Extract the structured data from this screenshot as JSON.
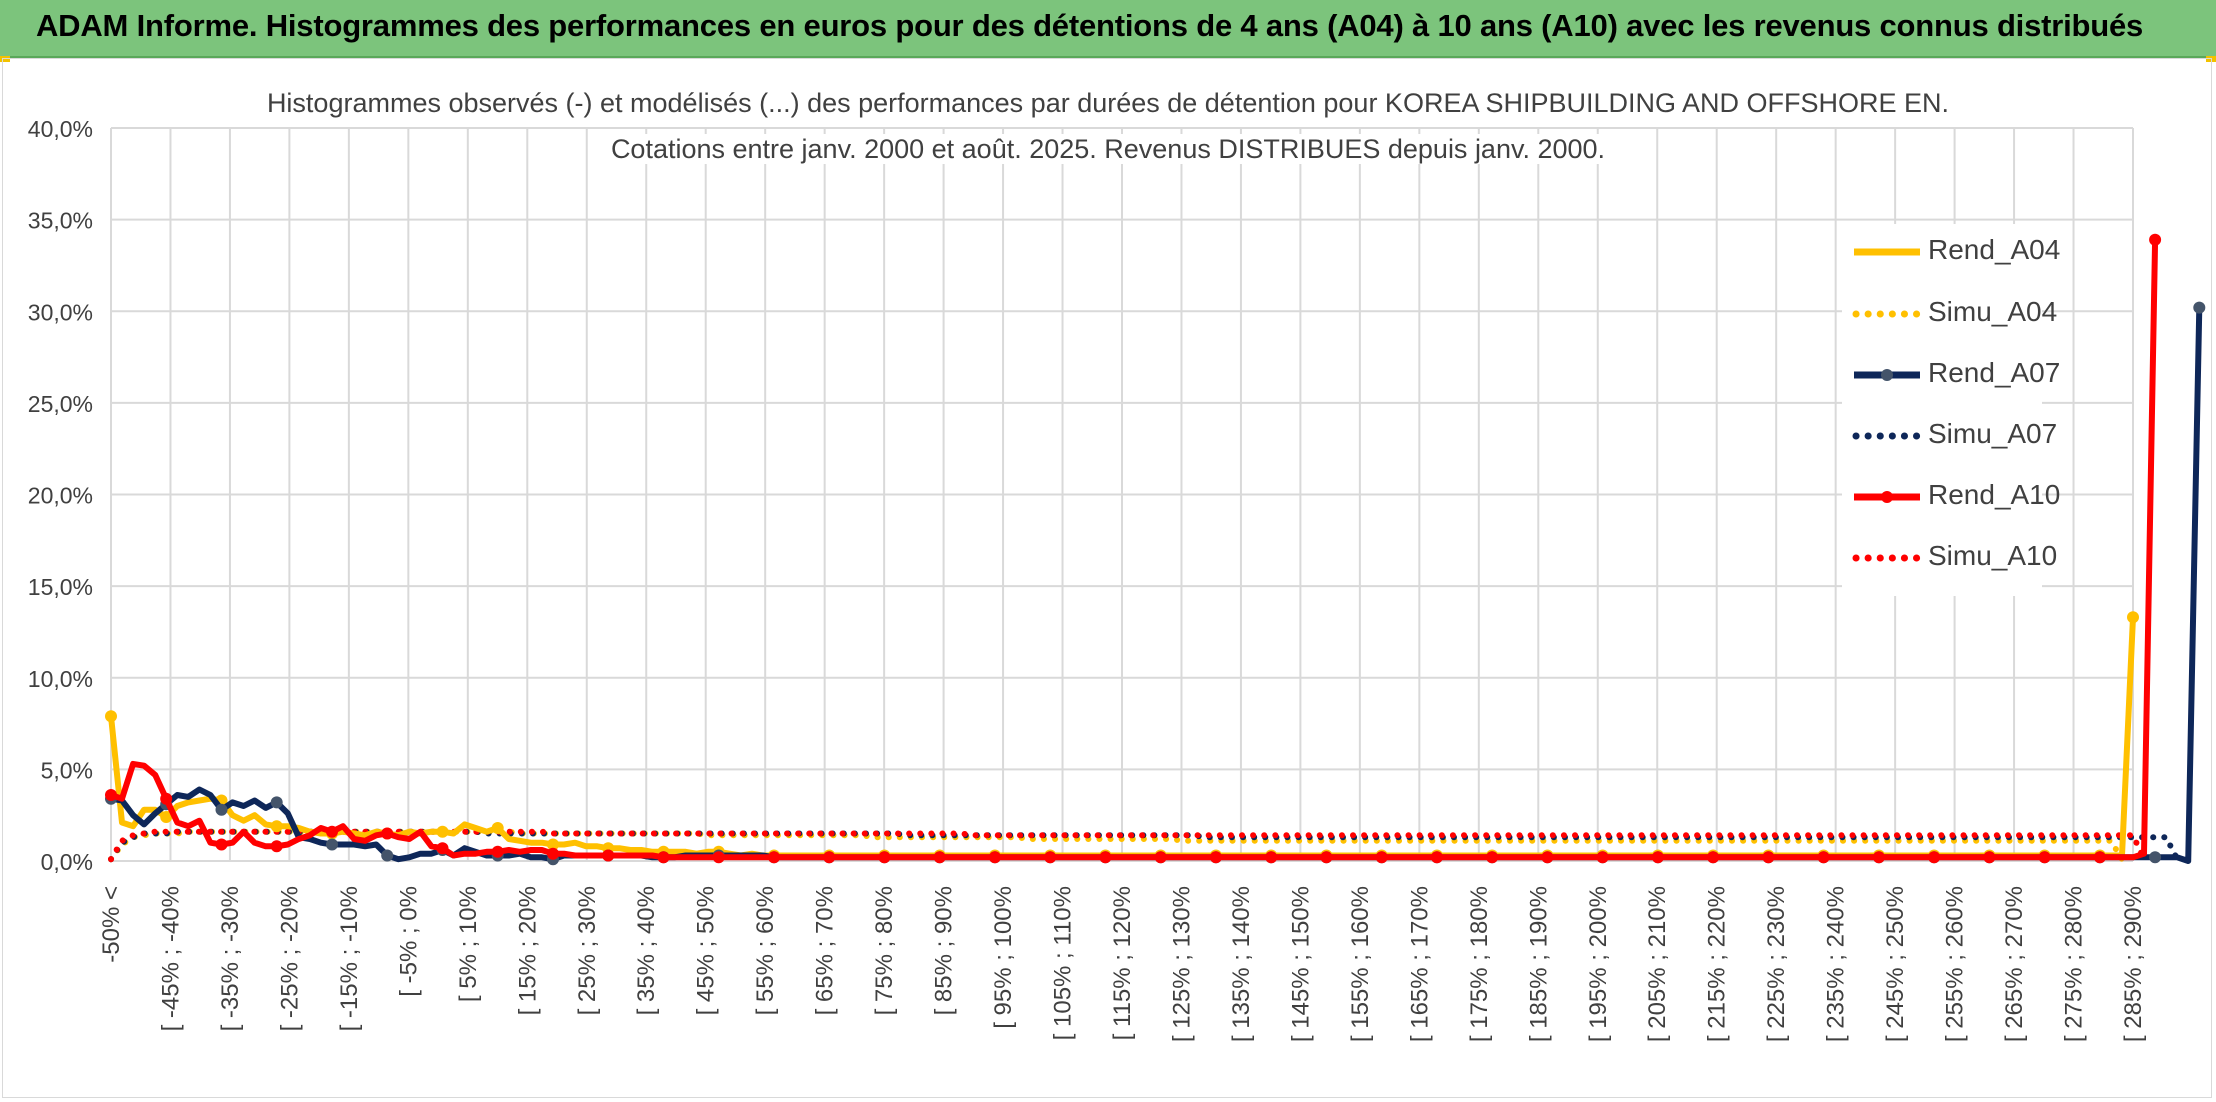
{
  "banner": {
    "title": "ADAM Informe. Histogrammes des performances en euros pour des détentions de 4 ans (A04) à 10 ans (A10) avec les revenus connus distribués"
  },
  "colors": {
    "banner_bg": "#7cc47c",
    "a04": "#ffc000",
    "a07": "#0e2759",
    "a10": "#ff0000",
    "grid": "#d9d9d9",
    "text": "#404040"
  },
  "chart_data": {
    "type": "line",
    "title": "Histogrammes observés (-) et modélisés (...) des performances par durées de détention pour KOREA SHIPBUILDING AND OFFSHORE EN.",
    "subtitle": "Cotations entre janv. 2000 et août. 2025. Revenus DISTRIBUES depuis janv. 2000.",
    "xlabel": "",
    "ylabel": "",
    "ylim": [
      0,
      40
    ],
    "yticks": [
      "0,0%",
      "5,0%",
      "10,0%",
      "15,0%",
      "20,0%",
      "25,0%",
      "30,0%",
      "35,0%",
      "40,0%"
    ],
    "grid": true,
    "legend_position": "right",
    "x_tick_labels": [
      "-50% <",
      "[ -45% ; -40%",
      "[ -35% ; -30%",
      "[ -25% ; -20%",
      "[ -15% ; -10%",
      "[ -5% ; 0%",
      "[ 5% ; 10%",
      "[ 15% ; 20%",
      "[ 25% ; 30%",
      "[ 35% ; 40%",
      "[ 45% ; 50%",
      "[ 55% ; 60%",
      "[ 65% ; 70%",
      "[ 75% ; 80%",
      "[ 85% ; 90%",
      "[ 95% ; 100%",
      "[ 105% ; 110%",
      "[ 115% ; 120%",
      "[ 125% ; 130%",
      "[ 135% ; 140%",
      "[ 145% ; 150%",
      "[ 155% ; 160%",
      "[ 165% ; 170%",
      "[ 175% ; 180%",
      "[ 185% ; 190%",
      "[ 195% ; 200%",
      "[ 205% ; 210%",
      "[ 215% ; 220%",
      "[ 225% ; 230%",
      "[ 235% ; 240%",
      "[ 245% ; 250%",
      "[ 255% ; 260%",
      "[ 265% ; 270%",
      "[ 275% ; 280%",
      "[ 285% ; 290%"
    ],
    "series": [
      {
        "name": "Rend_A04",
        "style": "solid",
        "color": "#ffc000",
        "values": [
          7.9,
          2.1,
          1.9,
          2.8,
          2.8,
          2.4,
          3.0,
          3.2,
          3.3,
          3.4,
          3.3,
          2.5,
          2.2,
          2.5,
          2.0,
          1.9,
          1.9,
          1.8,
          1.6,
          1.5,
          1.5,
          1.6,
          1.5,
          1.4,
          1.6,
          1.5,
          1.4,
          1.6,
          1.5,
          1.6,
          1.6,
          1.5,
          2.0,
          1.8,
          1.6,
          1.8,
          1.2,
          1.1,
          1.0,
          1.0,
          0.9,
          0.9,
          1.0,
          0.8,
          0.8,
          0.7,
          0.7,
          0.6,
          0.6,
          0.5,
          0.5,
          0.5,
          0.5,
          0.4,
          0.5,
          0.5,
          0.4,
          0.3,
          0.4,
          0.3,
          0.3,
          0.3,
          0.3,
          0.3,
          0.3,
          0.3,
          0.3,
          0.3,
          0.3,
          0.3,
          0.3,
          0.3,
          0.3,
          0.3,
          0.3,
          0.3,
          0.3,
          0.3,
          0.3,
          0.3,
          0.3,
          0.3,
          0.3,
          0.3,
          0.3,
          0.3,
          0.3,
          0.3,
          0.3,
          0.3,
          0.3,
          0.3,
          0.3,
          0.3,
          0.3,
          0.3,
          0.3,
          0.3,
          0.3,
          0.3,
          0.3,
          0.3,
          0.3,
          0.3,
          0.3,
          0.3,
          0.3,
          0.3,
          0.3,
          0.3,
          0.3,
          0.3,
          0.3,
          0.3,
          0.3,
          0.3,
          0.3,
          0.3,
          0.3,
          0.3,
          0.3,
          0.3,
          0.3,
          0.3,
          0.3,
          0.3,
          0.3,
          0.3,
          0.3,
          0.3,
          0.3,
          0.3,
          0.3,
          0.3,
          0.3,
          0.3,
          0.3,
          0.3,
          0.3,
          0.3,
          0.3,
          0.3,
          0.3,
          0.3,
          0.3,
          0.3,
          0.3,
          0.3,
          0.3,
          0.3,
          0.3,
          0.3,
          0.3,
          0.3,
          0.3,
          0.3,
          0.3,
          0.3,
          0.3,
          0.3,
          0.3,
          0.3,
          0.3,
          0.3,
          0.3,
          0.3,
          0.3,
          0.3,
          0.3,
          0.3,
          0.3,
          0.3,
          0.3,
          0.3,
          0.3,
          0.3,
          0.3,
          0.3,
          0.3,
          0.3,
          0.3,
          0.3,
          0.3,
          13.3
        ]
      },
      {
        "name": "Simu_A04",
        "style": "dotted",
        "color": "#ffc000",
        "values": [
          0.1,
          0.9,
          1.3,
          1.4,
          1.5,
          1.5,
          1.5,
          1.6,
          1.6,
          1.6,
          1.6,
          1.6,
          1.6,
          1.6,
          1.6,
          1.6,
          1.6,
          1.6,
          1.6,
          1.6,
          1.6,
          1.6,
          1.6,
          1.6,
          1.6,
          1.6,
          1.6,
          1.6,
          1.6,
          1.6,
          1.6,
          1.6,
          1.6,
          1.6,
          1.6,
          1.6,
          1.6,
          1.5,
          1.5,
          1.5,
          1.5,
          1.5,
          1.5,
          1.5,
          1.5,
          1.5,
          1.5,
          1.5,
          1.5,
          1.5,
          1.5,
          1.5,
          1.5,
          1.5,
          1.4,
          1.4,
          1.4,
          1.4,
          1.4,
          1.4,
          1.4,
          1.4,
          1.4,
          1.4,
          1.4,
          1.4,
          1.4,
          1.4,
          1.4,
          1.3,
          1.3,
          1.3,
          1.3,
          1.3,
          1.3,
          1.3,
          1.3,
          1.3,
          1.3,
          1.3,
          1.3,
          1.3,
          1.3,
          1.2,
          1.2,
          1.2,
          1.2,
          1.2,
          1.2,
          1.2,
          1.2,
          1.2,
          1.2,
          1.2,
          1.2,
          1.2,
          1.2,
          1.1,
          1.1,
          1.1,
          1.1,
          1.1,
          1.1,
          1.1,
          1.1,
          1.1,
          1.1,
          1.1,
          1.1,
          1.1,
          1.1,
          1.1,
          1.1,
          1.1,
          1.1,
          1.1,
          1.1,
          1.1,
          1.1,
          1.1,
          1.1,
          1.1,
          1.1,
          1.1,
          1.1,
          1.1,
          1.1,
          1.1,
          1.1,
          1.1,
          1.1,
          1.1,
          1.1,
          1.1,
          1.1,
          1.1,
          1.1,
          1.1,
          1.1,
          1.1,
          1.1,
          1.1,
          1.1,
          1.1,
          1.1,
          1.1,
          1.1,
          1.1,
          1.1,
          1.1,
          1.1,
          1.1,
          1.1,
          1.1,
          1.1,
          1.1,
          1.1,
          1.1,
          1.1,
          1.1,
          1.1,
          1.1,
          1.1,
          1.1,
          1.1,
          1.1,
          1.1,
          1.1,
          1.1,
          1.1,
          1.1,
          1.1,
          1.1,
          1.1,
          1.1,
          1.1,
          1.1,
          1.1,
          1.1,
          1.1,
          1.1,
          1.1,
          0.1
        ]
      },
      {
        "name": "Rend_A07",
        "style": "solid",
        "color": "#0e2759",
        "values": [
          3.4,
          3.3,
          2.5,
          2.0,
          2.6,
          3.1,
          3.6,
          3.5,
          3.9,
          3.6,
          2.8,
          3.2,
          3.0,
          3.3,
          2.9,
          3.2,
          2.6,
          1.3,
          1.2,
          1.0,
          0.9,
          0.9,
          0.9,
          0.8,
          0.9,
          0.3,
          0.1,
          0.2,
          0.4,
          0.4,
          0.6,
          0.3,
          0.7,
          0.5,
          0.3,
          0.3,
          0.3,
          0.4,
          0.2,
          0.2,
          0.1,
          0.3,
          0.3,
          0.3,
          0.3,
          0.3,
          0.3,
          0.3,
          0.3,
          0.2,
          0.2,
          0.2,
          0.3,
          0.3,
          0.3,
          0.3,
          0.3,
          0.3,
          0.3,
          0.3,
          0.2,
          0.2,
          0.2,
          0.2,
          0.2,
          0.2,
          0.2,
          0.2,
          0.2,
          0.2,
          0.2,
          0.2,
          0.2,
          0.2,
          0.2,
          0.2,
          0.2,
          0.2,
          0.2,
          0.2,
          0.2,
          0.2,
          0.2,
          0.2,
          0.2,
          0.2,
          0.2,
          0.2,
          0.2,
          0.2,
          0.2,
          0.2,
          0.2,
          0.2,
          0.2,
          0.2,
          0.2,
          0.2,
          0.2,
          0.2,
          0.2,
          0.2,
          0.2,
          0.2,
          0.2,
          0.2,
          0.2,
          0.2,
          0.2,
          0.2,
          0.2,
          0.2,
          0.2,
          0.2,
          0.2,
          0.2,
          0.2,
          0.2,
          0.2,
          0.2,
          0.2,
          0.2,
          0.2,
          0.2,
          0.2,
          0.2,
          0.2,
          0.2,
          0.2,
          0.2,
          0.2,
          0.2,
          0.2,
          0.2,
          0.2,
          0.2,
          0.2,
          0.2,
          0.2,
          0.2,
          0.2,
          0.2,
          0.2,
          0.2,
          0.2,
          0.2,
          0.2,
          0.2,
          0.2,
          0.2,
          0.2,
          0.2,
          0.2,
          0.2,
          0.2,
          0.2,
          0.2,
          0.2,
          0.2,
          0.2,
          0.2,
          0.2,
          0.2,
          0.2,
          0.2,
          0.2,
          0.2,
          0.2,
          0.2,
          0.2,
          0.2,
          0.2,
          0.2,
          0.2,
          0.2,
          0.2,
          0.2,
          0.2,
          0.2,
          0.2,
          0.2,
          0.2,
          0.2,
          0.2,
          0.2,
          0.2,
          0.2,
          0.2,
          0.0,
          30.2
        ]
      },
      {
        "name": "Simu_A07",
        "style": "dotted",
        "color": "#0e2759",
        "values": [
          0.1,
          1.0,
          1.3,
          1.5,
          1.5,
          1.5,
          1.6,
          1.6,
          1.6,
          1.6,
          1.6,
          1.6,
          1.6,
          1.6,
          1.6,
          1.6,
          1.6,
          1.6,
          1.6,
          1.6,
          1.6,
          1.6,
          1.6,
          1.6,
          1.6,
          1.6,
          1.6,
          1.6,
          1.6,
          1.6,
          1.6,
          1.6,
          1.6,
          1.6,
          1.5,
          1.5,
          1.5,
          1.5,
          1.5,
          1.5,
          1.5,
          1.5,
          1.5,
          1.5,
          1.5,
          1.5,
          1.5,
          1.5,
          1.5,
          1.5,
          1.5,
          1.5,
          1.5,
          1.5,
          1.5,
          1.5,
          1.5,
          1.5,
          1.5,
          1.5,
          1.5,
          1.5,
          1.5,
          1.5,
          1.5,
          1.5,
          1.5,
          1.5,
          1.5,
          1.5,
          1.5,
          1.5,
          1.4,
          1.4,
          1.4,
          1.4,
          1.4,
          1.4,
          1.4,
          1.4,
          1.4,
          1.4,
          1.4,
          1.4,
          1.4,
          1.4,
          1.4,
          1.4,
          1.4,
          1.4,
          1.4,
          1.4,
          1.4,
          1.4,
          1.4,
          1.4,
          1.4,
          1.4,
          1.4,
          1.3,
          1.3,
          1.3,
          1.3,
          1.3,
          1.3,
          1.3,
          1.3,
          1.3,
          1.3,
          1.3,
          1.3,
          1.3,
          1.3,
          1.3,
          1.3,
          1.3,
          1.3,
          1.3,
          1.3,
          1.3,
          1.3,
          1.3,
          1.3,
          1.3,
          1.3,
          1.3,
          1.3,
          1.3,
          1.3,
          1.3,
          1.3,
          1.3,
          1.3,
          1.3,
          1.3,
          1.3,
          1.3,
          1.3,
          1.3,
          1.3,
          1.3,
          1.3,
          1.3,
          1.3,
          1.3,
          1.3,
          1.3,
          1.3,
          1.3,
          1.3,
          1.3,
          1.3,
          1.3,
          1.3,
          1.3,
          1.3,
          1.3,
          1.3,
          1.3,
          1.3,
          1.3,
          1.3,
          1.3,
          1.3,
          1.3,
          1.3,
          1.3,
          1.3,
          1.3,
          1.3,
          1.3,
          1.3,
          1.3,
          1.3,
          1.3,
          1.3,
          1.3,
          1.3,
          1.3,
          1.3,
          1.3,
          1.3,
          1.3,
          1.3,
          1.3,
          1.3,
          1.3,
          0.1
        ]
      },
      {
        "name": "Rend_A10",
        "style": "solid",
        "color": "#ff0000",
        "values": [
          3.6,
          3.4,
          5.3,
          5.2,
          4.7,
          3.4,
          2.1,
          1.9,
          2.2,
          1.0,
          0.9,
          1.0,
          1.6,
          1.0,
          0.8,
          0.8,
          0.9,
          1.2,
          1.4,
          1.8,
          1.6,
          1.9,
          1.2,
          1.1,
          1.4,
          1.5,
          1.3,
          1.2,
          1.6,
          0.8,
          0.7,
          0.3,
          0.4,
          0.4,
          0.5,
          0.5,
          0.6,
          0.5,
          0.6,
          0.6,
          0.4,
          0.4,
          0.3,
          0.3,
          0.3,
          0.3,
          0.3,
          0.3,
          0.3,
          0.3,
          0.2,
          0.2,
          0.2,
          0.2,
          0.2,
          0.2,
          0.2,
          0.2,
          0.2,
          0.2,
          0.2,
          0.2,
          0.2,
          0.2,
          0.2,
          0.2,
          0.2,
          0.2,
          0.2,
          0.2,
          0.2,
          0.2,
          0.2,
          0.2,
          0.2,
          0.2,
          0.2,
          0.2,
          0.2,
          0.2,
          0.2,
          0.2,
          0.2,
          0.2,
          0.2,
          0.2,
          0.2,
          0.2,
          0.2,
          0.2,
          0.2,
          0.2,
          0.2,
          0.2,
          0.2,
          0.2,
          0.2,
          0.2,
          0.2,
          0.2,
          0.2,
          0.2,
          0.2,
          0.2,
          0.2,
          0.2,
          0.2,
          0.2,
          0.2,
          0.2,
          0.2,
          0.2,
          0.2,
          0.2,
          0.2,
          0.2,
          0.2,
          0.2,
          0.2,
          0.2,
          0.2,
          0.2,
          0.2,
          0.2,
          0.2,
          0.2,
          0.2,
          0.2,
          0.2,
          0.2,
          0.2,
          0.2,
          0.2,
          0.2,
          0.2,
          0.2,
          0.2,
          0.2,
          0.2,
          0.2,
          0.2,
          0.2,
          0.2,
          0.2,
          0.2,
          0.2,
          0.2,
          0.2,
          0.2,
          0.2,
          0.2,
          0.2,
          0.2,
          0.2,
          0.2,
          0.2,
          0.2,
          0.2,
          0.2,
          0.2,
          0.2,
          0.2,
          0.2,
          0.2,
          0.2,
          0.2,
          0.2,
          0.2,
          0.2,
          0.2,
          0.2,
          0.2,
          0.2,
          0.2,
          0.2,
          0.2,
          0.2,
          0.2,
          0.2,
          0.2,
          0.2,
          0.2,
          0.2,
          0.2,
          0.4,
          33.9
        ]
      },
      {
        "name": "Simu_A10",
        "style": "dotted",
        "color": "#ff0000",
        "values": [
          0.1,
          1.1,
          1.4,
          1.5,
          1.6,
          1.6,
          1.6,
          1.6,
          1.6,
          1.6,
          1.6,
          1.6,
          1.6,
          1.6,
          1.6,
          1.6,
          1.6,
          1.6,
          1.6,
          1.6,
          1.6,
          1.6,
          1.6,
          1.6,
          1.6,
          1.6,
          1.6,
          1.6,
          1.6,
          1.6,
          1.6,
          1.6,
          1.6,
          1.6,
          1.6,
          1.6,
          1.6,
          1.6,
          1.6,
          1.6,
          1.5,
          1.5,
          1.5,
          1.5,
          1.5,
          1.5,
          1.5,
          1.5,
          1.5,
          1.5,
          1.5,
          1.5,
          1.5,
          1.5,
          1.5,
          1.5,
          1.5,
          1.5,
          1.5,
          1.5,
          1.5,
          1.5,
          1.5,
          1.5,
          1.5,
          1.5,
          1.5,
          1.5,
          1.5,
          1.5,
          1.5,
          1.5,
          1.5,
          1.5,
          1.5,
          1.5,
          1.5,
          1.5,
          1.4,
          1.4,
          1.4,
          1.4,
          1.4,
          1.4,
          1.4,
          1.4,
          1.4,
          1.4,
          1.4,
          1.4,
          1.4,
          1.4,
          1.4,
          1.4,
          1.4,
          1.4,
          1.4,
          1.4,
          1.4,
          1.4,
          1.4,
          1.4,
          1.4,
          1.4,
          1.4,
          1.4,
          1.4,
          1.4,
          1.4,
          1.4,
          1.4,
          1.4,
          1.4,
          1.4,
          1.4,
          1.4,
          1.4,
          1.4,
          1.4,
          1.4,
          1.4,
          1.4,
          1.4,
          1.4,
          1.4,
          1.4,
          1.4,
          1.4,
          1.4,
          1.4,
          1.4,
          1.4,
          1.4,
          1.4,
          1.4,
          1.4,
          1.4,
          1.4,
          1.4,
          1.4,
          1.4,
          1.4,
          1.4,
          1.4,
          1.4,
          1.4,
          1.4,
          1.4,
          1.4,
          1.4,
          1.4,
          1.4,
          1.4,
          1.4,
          1.4,
          1.4,
          1.4,
          1.4,
          1.4,
          1.4,
          1.4,
          1.4,
          1.4,
          1.4,
          1.4,
          1.4,
          1.4,
          1.4,
          1.4,
          1.4,
          1.4,
          1.4,
          1.4,
          1.4,
          1.4,
          1.4,
          1.4,
          1.4,
          1.4,
          1.4,
          1.4,
          1.4,
          1.4,
          1.4,
          0.1
        ]
      }
    ]
  }
}
